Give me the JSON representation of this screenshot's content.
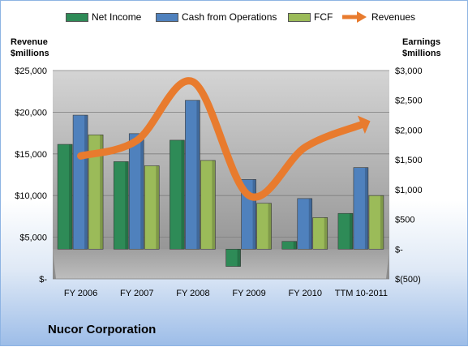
{
  "chart_data": {
    "type": "bar+line",
    "title": "Nucor Corporation",
    "categories": [
      "FY 2006",
      "FY 2007",
      "FY 2008",
      "FY 2009",
      "FY 2010",
      "TTM 10-2011"
    ],
    "left_axis": {
      "label_line1": "Revenue",
      "label_line2": "$millions",
      "ticks": [
        "$-",
        "$5,000",
        "$10,000",
        "$15,000",
        "$20,000",
        "$25,000"
      ],
      "range": [
        0,
        25000
      ]
    },
    "right_axis": {
      "label_line1": "Earnings",
      "label_line2": "$millions",
      "ticks": [
        "$(500)",
        "$-",
        "$500",
        "$1,000",
        "$1,500",
        "$2,000",
        "$2,500",
        "$3,000"
      ],
      "range": [
        -500,
        3000
      ]
    },
    "series": [
      {
        "name": "Net Income",
        "axis": "right",
        "type": "bar",
        "color": "#2e8b57",
        "values": [
          1760,
          1470,
          1830,
          -290,
          130,
          600
        ]
      },
      {
        "name": "Cash from Operations",
        "axis": "right",
        "type": "bar",
        "color": "#4f81bd",
        "values": [
          2250,
          1940,
          2500,
          1170,
          850,
          1370
        ]
      },
      {
        "name": "FCF",
        "axis": "right",
        "type": "bar",
        "color": "#9bbb59",
        "values": [
          1920,
          1400,
          1490,
          770,
          530,
          900
        ]
      },
      {
        "name": "Revenues",
        "axis": "left",
        "type": "line",
        "color": "#e87b2e",
        "values": [
          14750,
          16600,
          23650,
          10000,
          15800,
          18500
        ]
      }
    ],
    "grid": true,
    "legend_position": "top"
  },
  "legend": [
    "Net Income",
    "Cash from Operations",
    "FCF",
    "Revenues"
  ],
  "colors": {
    "net_income": "#2e8b57",
    "cash_ops": "#4f81bd",
    "fcf": "#9bbb59",
    "revenues": "#e87b2e",
    "plot_bg": "#bfbfbf"
  }
}
